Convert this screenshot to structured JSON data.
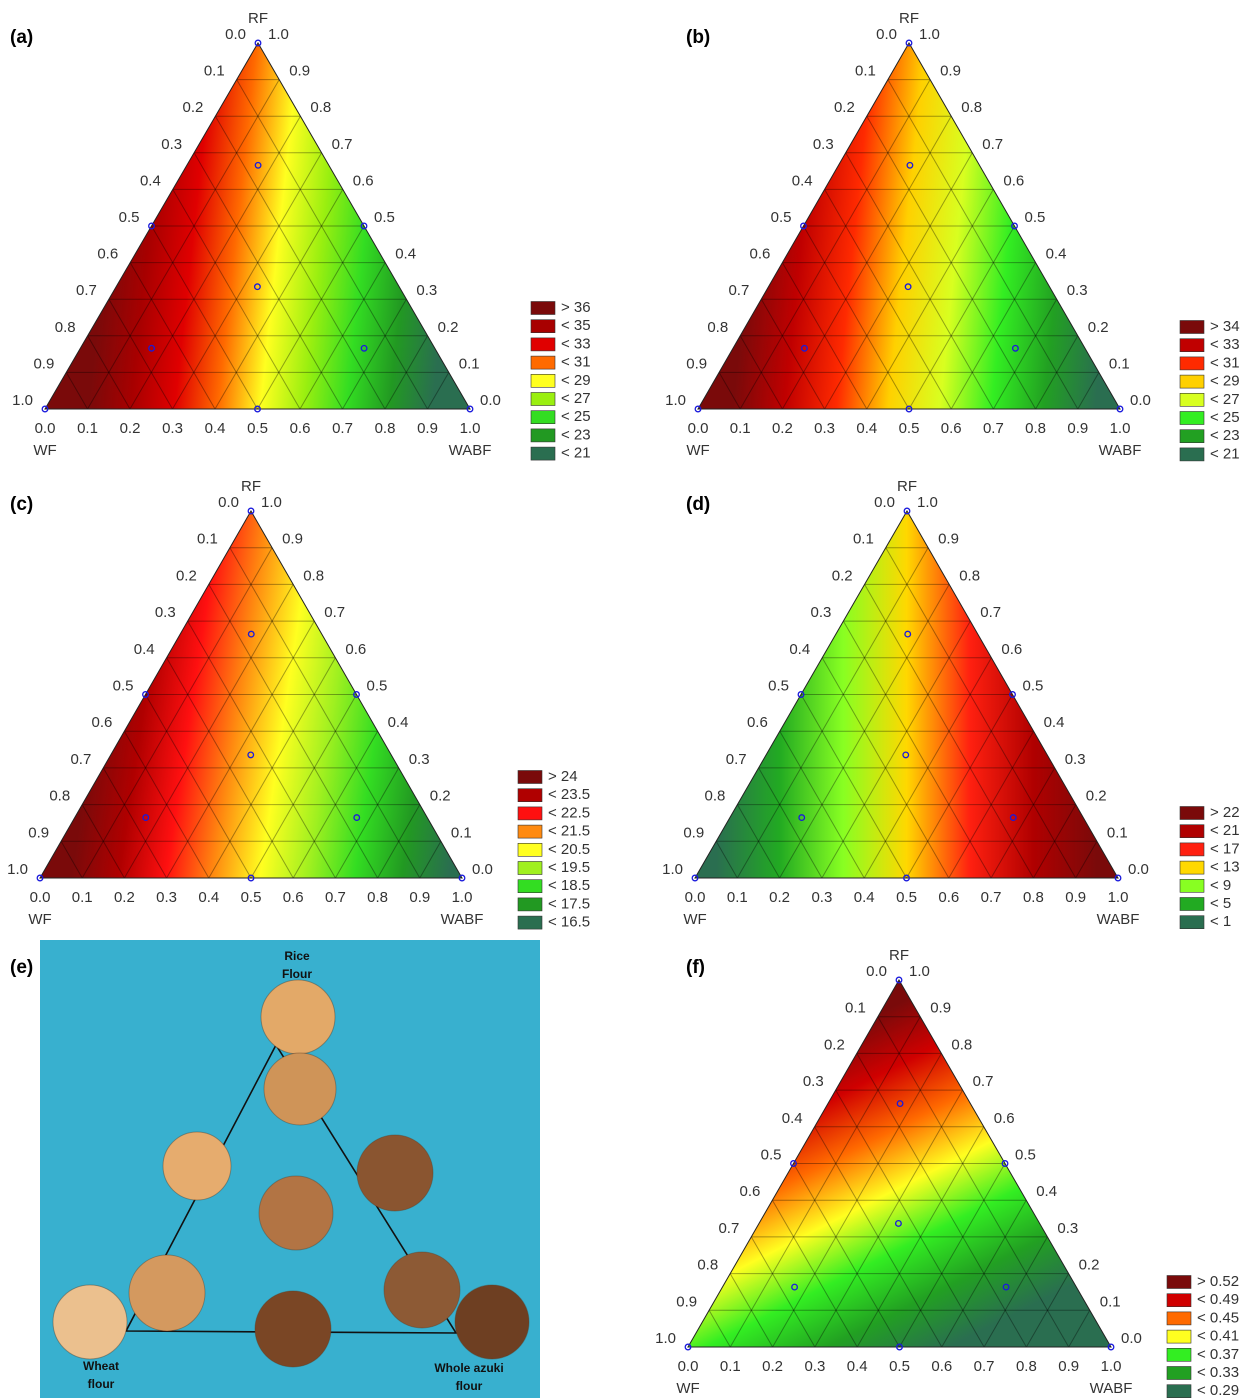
{
  "lim": [
    0,
    1
  ],
  "ticks": [
    {
      "value": 0,
      "label": "0.0"
    },
    0.1,
    0.2,
    0.3,
    0.4,
    0.5,
    0.6,
    0.7,
    0.8,
    0.9,
    {
      "value": 1,
      "label": "1.0"
    }
  ],
  "design_points": [
    [
      0,
      1,
      0
    ],
    [
      0.5,
      0.5,
      0
    ],
    [
      0,
      0.5,
      0.5
    ],
    [
      1,
      0,
      0
    ],
    [
      0.5,
      0,
      0.5
    ],
    [
      0,
      0,
      1
    ],
    [
      0.333,
      0.333,
      0.333
    ],
    [
      0.167,
      0.667,
      0.167
    ],
    [
      0.667,
      0.167,
      0.167
    ],
    [
      0.167,
      0.167,
      0.667
    ]
  ],
  "panels": [
    {
      "label": "(a)",
      "type": "ternary",
      "top": "RF",
      "left": "WF",
      "right": "WABF",
      "legend": [
        {
          "label": "> 36",
          "color": "#7a0a0a"
        },
        {
          "label": "< 35",
          "color": "#a80000"
        },
        {
          "label": "< 33",
          "color": "#e00000"
        },
        {
          "label": "< 31",
          "color": "#ff6a00"
        },
        {
          "label": "< 29",
          "color": "#ffff20"
        },
        {
          "label": "< 27",
          "color": "#9aef10"
        },
        {
          "label": "< 25",
          "color": "#33dd22"
        },
        {
          "label": "< 23",
          "color": "#229922"
        },
        {
          "label": "< 21",
          "color": "#2a6e50"
        }
      ]
    },
    {
      "label": "(b)",
      "type": "ternary",
      "top": "RF",
      "left": "WF",
      "right": "WABF",
      "legend": [
        {
          "label": "> 34",
          "color": "#7a0a0a"
        },
        {
          "label": "< 33",
          "color": "#c00000"
        },
        {
          "label": "< 31",
          "color": "#ff2a00"
        },
        {
          "label": "< 29",
          "color": "#ffd000"
        },
        {
          "label": "< 27",
          "color": "#d8ff20"
        },
        {
          "label": "< 25",
          "color": "#33ee22"
        },
        {
          "label": "< 23",
          "color": "#22a022"
        },
        {
          "label": "< 21",
          "color": "#2a6e50"
        }
      ]
    },
    {
      "label": "(c)",
      "type": "ternary",
      "top": "RF",
      "left": "WF",
      "right": "WABF",
      "legend": [
        {
          "label": "> 24",
          "color": "#7a0a0a"
        },
        {
          "label": "< 23.5",
          "color": "#b00000"
        },
        {
          "label": "< 22.5",
          "color": "#ff1010"
        },
        {
          "label": "< 21.5",
          "color": "#ff8a10"
        },
        {
          "label": "< 20.5",
          "color": "#ffff20"
        },
        {
          "label": "< 19.5",
          "color": "#a0f020"
        },
        {
          "label": "< 18.5",
          "color": "#33dd22"
        },
        {
          "label": "< 17.5",
          "color": "#229922"
        },
        {
          "label": "< 16.5",
          "color": "#2a6e50"
        }
      ]
    },
    {
      "label": "(d)",
      "type": "ternary",
      "top": "RF",
      "left": "WF",
      "right": "WABF",
      "legend": [
        {
          "label": "> 22",
          "color": "#7a0a0a"
        },
        {
          "label": "< 21",
          "color": "#b00000"
        },
        {
          "label": "< 17",
          "color": "#ff2010"
        },
        {
          "label": "< 13",
          "color": "#ffd800"
        },
        {
          "label": "< 9",
          "color": "#88ff22"
        },
        {
          "label": "< 5",
          "color": "#22aa22"
        },
        {
          "label": "< 1",
          "color": "#2a6e50"
        }
      ]
    },
    {
      "label": "(e)",
      "type": "photo",
      "labels": [
        [
          "Rice",
          "Flour"
        ],
        [
          "Wheat",
          "flour"
        ],
        [
          "Whole azuki",
          "flour"
        ]
      ]
    },
    {
      "label": "(f)",
      "type": "ternary",
      "top": "RF",
      "left": "WF",
      "right": "WABF",
      "legend": [
        {
          "label": "> 0.52",
          "color": "#7a0a0a"
        },
        {
          "label": "< 0.49",
          "color": "#d00000"
        },
        {
          "label": "< 0.45",
          "color": "#ff6a00"
        },
        {
          "label": "< 0.41",
          "color": "#ffff20"
        },
        {
          "label": "< 0.37",
          "color": "#33ee22"
        },
        {
          "label": "< 0.33",
          "color": "#22a022"
        },
        {
          "label": "< 0.29",
          "color": "#2a6e50"
        }
      ]
    }
  ]
}
